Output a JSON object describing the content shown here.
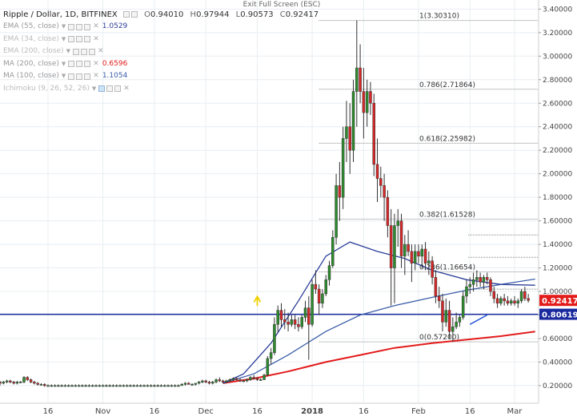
{
  "window": {
    "exit_fullscreen_label": "Exit Full Screen (ESC)"
  },
  "legend": {
    "symbol": "Ripple / Dollar, 1D, BITFINEX",
    "ohlc": [
      {
        "key": "O",
        "value": "0.94010"
      },
      {
        "key": "H",
        "value": "0.97944"
      },
      {
        "key": "L",
        "value": "0.90573"
      },
      {
        "key": "C",
        "value": "0.92417"
      }
    ],
    "indicators": [
      {
        "name": "EMA (55, close)",
        "value": "1.0529",
        "color": "#2c3e99",
        "faded": false,
        "controls": 3
      },
      {
        "name": "EMA (34, close)",
        "value": "",
        "color": "#888888",
        "faded": true,
        "controls": 3
      },
      {
        "name": "EMA (200, close)",
        "value": "",
        "color": "#888888",
        "faded": true,
        "controls": 3
      },
      {
        "name": "MA (200, close)",
        "value": "0.6596",
        "color": "#e31b1b",
        "faded": false,
        "controls": 3
      },
      {
        "name": "MA (100, close)",
        "value": "1.1054",
        "color": "#3b5ea8",
        "faded": false,
        "controls": 3
      },
      {
        "name": "Ichimoku (9, 26, 52, 26)",
        "value": "",
        "color": "#888888",
        "faded": true,
        "controls": 3
      }
    ]
  },
  "price_axis": {
    "ticks": [
      "3.40000",
      "3.20000",
      "3.00000",
      "2.80000",
      "2.60000",
      "2.40000",
      "2.20000",
      "2.00000",
      "1.80000",
      "1.60000",
      "1.40000",
      "1.20000",
      "1.00000",
      "0.80000",
      "0.60000",
      "0.40000",
      "0.20000"
    ],
    "current_price_label": "0.92417",
    "current_price_color": "#e31b1b",
    "level_label": "0.80619",
    "level_color": "#1a2a9e"
  },
  "chart_data": {
    "type": "candlestick",
    "title": "Ripple / Dollar, 1D, BITFINEX",
    "x_tick_labels": [
      "16",
      "Nov",
      "16",
      "Dec",
      "16",
      "2018",
      "16",
      "Feb",
      "16",
      "Mar"
    ],
    "x_tick_dates": [
      "2017-10-16",
      "2017-11-01",
      "2017-11-16",
      "2017-12-01",
      "2017-12-16",
      "2018-01-01",
      "2018-01-16",
      "2018-02-01",
      "2018-02-16",
      "2018-03-01"
    ],
    "x_range": [
      "2017-10-02",
      "2018-03-08"
    ],
    "ylim": [
      0.05,
      3.45
    ],
    "grid": true,
    "horizontal_line": 0.80619,
    "fibonacci": [
      {
        "label": "1(3.30310)",
        "value": 3.3031
      },
      {
        "label": "0.786(2.71864)",
        "value": 2.71864
      },
      {
        "label": "0.618(2.25982)",
        "value": 2.25982
      },
      {
        "label": "0.382(1.61528)",
        "value": 1.61528
      },
      {
        "label": "0.236(1.16654)",
        "value": 1.16654
      },
      {
        "label": "0(0.57200)",
        "value": 0.572
      }
    ],
    "candles": {
      "start": "2017-10-02",
      "ohlc": [
        [
          0.23,
          0.24,
          0.2,
          0.22
        ],
        [
          0.22,
          0.24,
          0.21,
          0.23
        ],
        [
          0.23,
          0.25,
          0.22,
          0.24
        ],
        [
          0.24,
          0.25,
          0.22,
          0.23
        ],
        [
          0.23,
          0.24,
          0.21,
          0.22
        ],
        [
          0.22,
          0.24,
          0.21,
          0.23
        ],
        [
          0.23,
          0.24,
          0.22,
          0.23
        ],
        [
          0.23,
          0.28,
          0.22,
          0.27
        ],
        [
          0.27,
          0.28,
          0.24,
          0.25
        ],
        [
          0.25,
          0.26,
          0.22,
          0.23
        ],
        [
          0.23,
          0.24,
          0.21,
          0.22
        ],
        [
          0.22,
          0.23,
          0.2,
          0.21
        ],
        [
          0.21,
          0.22,
          0.2,
          0.21
        ],
        [
          0.21,
          0.22,
          0.19,
          0.2
        ],
        [
          0.2,
          0.21,
          0.19,
          0.2
        ],
        [
          0.2,
          0.21,
          0.19,
          0.2
        ],
        [
          0.2,
          0.21,
          0.19,
          0.2
        ],
        [
          0.2,
          0.21,
          0.19,
          0.2
        ],
        [
          0.2,
          0.21,
          0.19,
          0.2
        ],
        [
          0.2,
          0.21,
          0.19,
          0.2
        ],
        [
          0.2,
          0.21,
          0.19,
          0.2
        ],
        [
          0.2,
          0.21,
          0.19,
          0.2
        ],
        [
          0.2,
          0.21,
          0.19,
          0.2
        ],
        [
          0.2,
          0.21,
          0.19,
          0.2
        ],
        [
          0.2,
          0.21,
          0.19,
          0.2
        ],
        [
          0.2,
          0.21,
          0.19,
          0.2
        ],
        [
          0.2,
          0.21,
          0.19,
          0.2
        ],
        [
          0.2,
          0.21,
          0.19,
          0.2
        ],
        [
          0.2,
          0.21,
          0.19,
          0.2
        ],
        [
          0.2,
          0.21,
          0.19,
          0.2
        ],
        [
          0.2,
          0.21,
          0.19,
          0.2
        ],
        [
          0.2,
          0.21,
          0.19,
          0.2
        ],
        [
          0.2,
          0.21,
          0.19,
          0.2
        ],
        [
          0.2,
          0.21,
          0.19,
          0.2
        ],
        [
          0.2,
          0.21,
          0.19,
          0.2
        ],
        [
          0.2,
          0.21,
          0.19,
          0.2
        ],
        [
          0.2,
          0.21,
          0.19,
          0.2
        ],
        [
          0.2,
          0.21,
          0.19,
          0.2
        ],
        [
          0.2,
          0.21,
          0.19,
          0.2
        ],
        [
          0.2,
          0.21,
          0.19,
          0.2
        ],
        [
          0.2,
          0.21,
          0.19,
          0.2
        ],
        [
          0.2,
          0.21,
          0.19,
          0.2
        ],
        [
          0.2,
          0.21,
          0.19,
          0.2
        ],
        [
          0.2,
          0.21,
          0.19,
          0.2
        ],
        [
          0.2,
          0.21,
          0.19,
          0.2
        ],
        [
          0.2,
          0.21,
          0.19,
          0.2
        ],
        [
          0.2,
          0.21,
          0.19,
          0.2
        ],
        [
          0.2,
          0.21,
          0.19,
          0.2
        ],
        [
          0.2,
          0.21,
          0.19,
          0.2
        ],
        [
          0.2,
          0.21,
          0.19,
          0.2
        ],
        [
          0.2,
          0.21,
          0.19,
          0.2
        ],
        [
          0.2,
          0.21,
          0.19,
          0.2
        ],
        [
          0.2,
          0.21,
          0.19,
          0.2
        ],
        [
          0.2,
          0.22,
          0.2,
          0.21
        ],
        [
          0.21,
          0.23,
          0.2,
          0.22
        ],
        [
          0.22,
          0.23,
          0.21,
          0.21
        ],
        [
          0.21,
          0.22,
          0.2,
          0.21
        ],
        [
          0.21,
          0.22,
          0.2,
          0.22
        ],
        [
          0.22,
          0.24,
          0.21,
          0.23
        ],
        [
          0.23,
          0.25,
          0.22,
          0.24
        ],
        [
          0.24,
          0.25,
          0.22,
          0.23
        ],
        [
          0.23,
          0.24,
          0.21,
          0.22
        ],
        [
          0.22,
          0.24,
          0.21,
          0.23
        ],
        [
          0.23,
          0.26,
          0.22,
          0.25
        ],
        [
          0.25,
          0.27,
          0.23,
          0.24
        ],
        [
          0.24,
          0.25,
          0.22,
          0.23
        ],
        [
          0.23,
          0.25,
          0.22,
          0.24
        ],
        [
          0.24,
          0.26,
          0.23,
          0.25
        ],
        [
          0.25,
          0.27,
          0.24,
          0.26
        ],
        [
          0.26,
          0.27,
          0.24,
          0.25
        ],
        [
          0.25,
          0.26,
          0.23,
          0.24
        ],
        [
          0.24,
          0.25,
          0.23,
          0.24
        ],
        [
          0.24,
          0.26,
          0.23,
          0.25
        ],
        [
          0.25,
          0.28,
          0.24,
          0.27
        ],
        [
          0.27,
          0.29,
          0.25,
          0.26
        ],
        [
          0.26,
          0.27,
          0.24,
          0.25
        ],
        [
          0.25,
          0.26,
          0.24,
          0.25
        ],
        [
          0.25,
          0.3,
          0.25,
          0.29
        ],
        [
          0.29,
          0.45,
          0.28,
          0.43
        ],
        [
          0.43,
          0.52,
          0.38,
          0.48
        ],
        [
          0.48,
          0.78,
          0.46,
          0.72
        ],
        [
          0.72,
          0.88,
          0.65,
          0.84
        ],
        [
          0.84,
          0.9,
          0.7,
          0.76
        ],
        [
          0.76,
          0.85,
          0.68,
          0.74
        ],
        [
          0.74,
          0.82,
          0.66,
          0.72
        ],
        [
          0.72,
          0.8,
          0.7,
          0.76
        ],
        [
          0.76,
          0.8,
          0.68,
          0.72
        ],
        [
          0.72,
          0.78,
          0.66,
          0.7
        ],
        [
          0.7,
          0.8,
          0.68,
          0.78
        ],
        [
          0.78,
          0.92,
          0.74,
          0.86
        ],
        [
          0.86,
          0.96,
          0.42,
          0.72
        ],
        [
          0.72,
          1.1,
          0.7,
          1.06
        ],
        [
          1.06,
          1.18,
          0.98,
          1.02
        ],
        [
          1.02,
          1.06,
          0.8,
          0.9
        ],
        [
          0.9,
          1.02,
          0.86,
          0.98
        ],
        [
          0.98,
          1.14,
          0.96,
          1.1
        ],
        [
          1.1,
          1.26,
          1.05,
          1.22
        ],
        [
          1.22,
          1.52,
          1.2,
          1.46
        ],
        [
          1.46,
          2.0,
          1.4,
          1.9
        ],
        [
          1.9,
          2.1,
          1.6,
          1.8
        ],
        [
          1.8,
          2.4,
          1.7,
          2.3
        ],
        [
          2.3,
          2.62,
          2.1,
          2.4
        ],
        [
          2.4,
          2.6,
          2.0,
          2.2
        ],
        [
          2.2,
          2.8,
          2.1,
          2.7
        ],
        [
          2.7,
          3.3031,
          2.4,
          2.9
        ],
        [
          2.9,
          3.1,
          2.6,
          2.7
        ],
        [
          2.7,
          2.9,
          2.3,
          2.52
        ],
        [
          2.52,
          2.8,
          2.4,
          2.7
        ],
        [
          2.7,
          2.78,
          2.5,
          2.6
        ],
        [
          2.6,
          2.68,
          1.98,
          2.08
        ],
        [
          2.08,
          2.3,
          1.76,
          1.96
        ],
        [
          1.96,
          2.06,
          1.8,
          1.9
        ],
        [
          1.9,
          2.0,
          1.6,
          1.8
        ],
        [
          1.8,
          1.86,
          1.46,
          1.56
        ],
        [
          1.56,
          1.7,
          0.88,
          1.2
        ],
        [
          1.2,
          1.66,
          0.9,
          1.56
        ],
        [
          1.56,
          1.7,
          1.38,
          1.6
        ],
        [
          1.6,
          1.66,
          1.2,
          1.3
        ],
        [
          1.3,
          1.48,
          1.14,
          1.4
        ],
        [
          1.4,
          1.52,
          1.3,
          1.34
        ],
        [
          1.34,
          1.4,
          1.08,
          1.24
        ],
        [
          1.24,
          1.4,
          1.18,
          1.34
        ],
        [
          1.34,
          1.4,
          1.24,
          1.3
        ],
        [
          1.3,
          1.4,
          1.2,
          1.36
        ],
        [
          1.36,
          1.42,
          1.18,
          1.24
        ],
        [
          1.24,
          1.34,
          1.14,
          1.26
        ],
        [
          1.26,
          1.3,
          1.06,
          1.12
        ],
        [
          1.12,
          1.18,
          0.9,
          0.96
        ],
        [
          0.96,
          1.04,
          0.86,
          0.92
        ],
        [
          0.92,
          0.98,
          0.66,
          0.74
        ],
        [
          0.74,
          0.94,
          0.7,
          0.84
        ],
        [
          0.84,
          0.92,
          0.6,
          0.66
        ],
        [
          0.66,
          0.78,
          0.572,
          0.7
        ],
        [
          0.7,
          0.82,
          0.68,
          0.74
        ],
        [
          0.74,
          0.8,
          0.7,
          0.78
        ],
        [
          0.78,
          1.0,
          0.76,
          0.96
        ],
        [
          0.96,
          1.1,
          0.9,
          1.04
        ],
        [
          1.04,
          1.12,
          0.98,
          1.06
        ],
        [
          1.06,
          1.16,
          1.0,
          1.1
        ],
        [
          1.1,
          1.18,
          1.04,
          1.12
        ],
        [
          1.12,
          1.16,
          1.04,
          1.08
        ],
        [
          1.08,
          1.14,
          1.02,
          1.12
        ],
        [
          1.12,
          1.16,
          1.06,
          1.1
        ],
        [
          1.1,
          1.12,
          0.96,
          1.0
        ],
        [
          1.0,
          1.04,
          0.9,
          0.94
        ],
        [
          0.94,
          0.98,
          0.86,
          0.9
        ],
        [
          0.9,
          0.96,
          0.88,
          0.94
        ],
        [
          0.94,
          0.98,
          0.88,
          0.92
        ],
        [
          0.92,
          0.96,
          0.88,
          0.9
        ],
        [
          0.9,
          0.94,
          0.88,
          0.92
        ],
        [
          0.92,
          0.96,
          0.88,
          0.9
        ],
        [
          0.9,
          0.94,
          0.86,
          0.92
        ],
        [
          0.92,
          1.02,
          0.9,
          1.0
        ],
        [
          1.0,
          1.04,
          0.92,
          0.94
        ],
        [
          0.9401,
          0.97944,
          0.90573,
          0.92417
        ]
      ]
    },
    "series": [
      {
        "name": "MA (200, close)",
        "color": "#e31b1b",
        "points": [
          [
            "2017-12-06",
            0.22
          ],
          [
            "2017-12-15",
            0.26
          ],
          [
            "2017-12-25",
            0.32
          ],
          [
            "2018-01-05",
            0.4
          ],
          [
            "2018-01-15",
            0.46
          ],
          [
            "2018-01-25",
            0.52
          ],
          [
            "2018-02-05",
            0.56
          ],
          [
            "2018-02-15",
            0.59
          ],
          [
            "2018-02-25",
            0.62
          ],
          [
            "2018-03-07",
            0.6596
          ]
        ]
      },
      {
        "name": "MA (100, close)",
        "color": "#3b5ea8",
        "points": [
          [
            "2017-12-06",
            0.22
          ],
          [
            "2017-12-15",
            0.3
          ],
          [
            "2017-12-25",
            0.46
          ],
          [
            "2018-01-05",
            0.66
          ],
          [
            "2018-01-15",
            0.8
          ],
          [
            "2018-01-25",
            0.88
          ],
          [
            "2018-02-05",
            0.95
          ],
          [
            "2018-02-15",
            1.01
          ],
          [
            "2018-02-25",
            1.06
          ],
          [
            "2018-03-07",
            1.1054
          ]
        ]
      },
      {
        "name": "EMA (55, close)",
        "color": "#2c3e99",
        "points": [
          [
            "2017-12-06",
            0.22
          ],
          [
            "2017-12-12",
            0.3
          ],
          [
            "2017-12-20",
            0.56
          ],
          [
            "2017-12-28",
            0.92
          ],
          [
            "2018-01-05",
            1.3
          ],
          [
            "2018-01-12",
            1.42
          ],
          [
            "2018-01-20",
            1.34
          ],
          [
            "2018-01-28",
            1.28
          ],
          [
            "2018-02-05",
            1.18
          ],
          [
            "2018-02-15",
            1.1
          ],
          [
            "2018-02-25",
            1.06
          ],
          [
            "2018-03-07",
            1.0529
          ]
        ]
      }
    ],
    "trendline": {
      "from": [
        "2018-02-16",
        0.72
      ],
      "to": [
        "2018-02-21",
        0.8
      ]
    },
    "up_arrow": {
      "date": "2017-12-16",
      "value": 0.91
    },
    "colors": {
      "up": "#2e8b2e",
      "down": "#d62728",
      "grid": "#e8eef2",
      "fib": "#888888"
    }
  }
}
